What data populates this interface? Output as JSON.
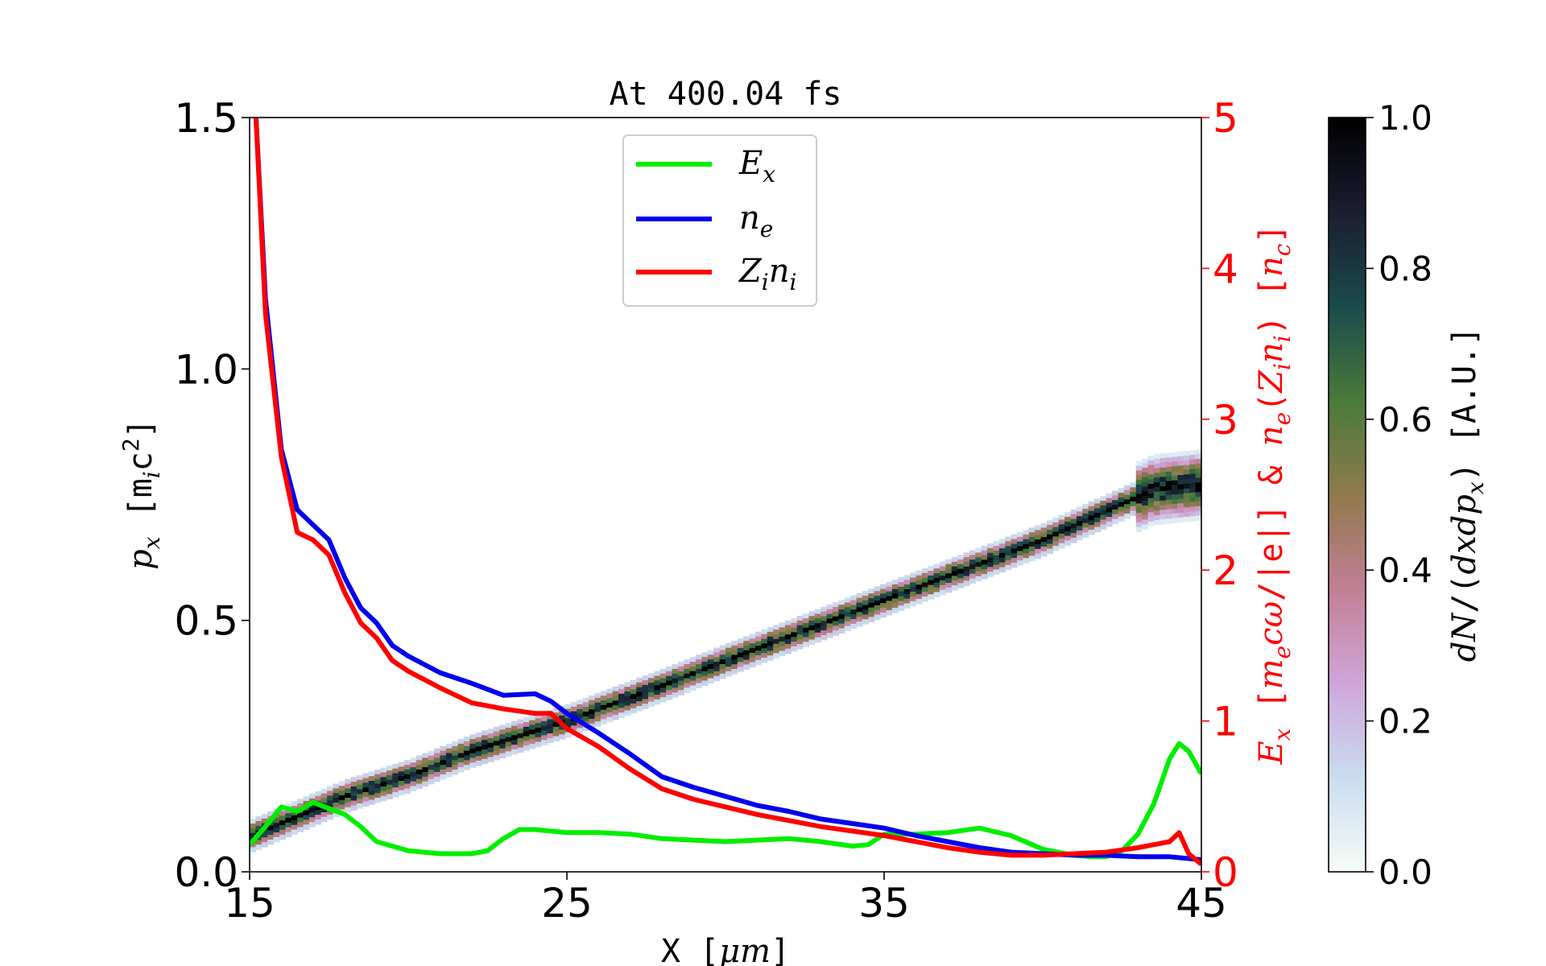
{
  "chart_data": {
    "type": "line",
    "title": "At 400.04 fs",
    "xlabel": "X [μm]",
    "ylabel_left": "px [mic2]",
    "ylabel_right": "Ex [mecω/|e|] & ne(Zini) [nc]",
    "colorbar_label": "dN/(dxdpx) [A.U.]",
    "xlim": [
      15,
      45
    ],
    "ylim_left": [
      0,
      1.5
    ],
    "ylim_right": [
      0,
      5
    ],
    "colorbar_lim": [
      0,
      1
    ],
    "x_ticks": [
      "15",
      "25",
      "35",
      "45"
    ],
    "y_ticks_left": [
      "0.0",
      "0.5",
      "1.0",
      "1.5"
    ],
    "y_ticks_right": [
      "0",
      "1",
      "2",
      "3",
      "4",
      "5"
    ],
    "colorbar_ticks": [
      "0.0",
      "0.2",
      "0.4",
      "0.6",
      "0.8",
      "1.0"
    ],
    "right_axis_color": "#ff0000",
    "colormap": [
      "#f7fcf7",
      "#c9dcef",
      "#cfa6d8",
      "#c27f94",
      "#8f7a4d",
      "#4a7a3a",
      "#1b4a4c",
      "#1a1d30",
      "#000000"
    ],
    "legend": {
      "placement": "top-center",
      "entries": [
        {
          "label": "Ex",
          "color": "#00ee00"
        },
        {
          "label": "ne",
          "color": "#0000ee"
        },
        {
          "label": "Zini",
          "color": "#ff0000"
        }
      ]
    },
    "series": [
      {
        "axis": "right",
        "color": "#00ee00",
        "x": [
          15,
          15.5,
          16,
          16.5,
          17,
          17.5,
          18,
          18.5,
          19,
          20,
          21,
          22,
          22.5,
          23,
          23.5,
          24,
          25,
          26,
          27,
          28,
          29,
          30,
          31,
          32,
          33,
          34,
          34.5,
          35,
          36,
          37,
          38,
          39,
          40,
          41,
          41.5,
          42,
          42.5,
          43,
          43.5,
          44,
          44.3,
          44.6,
          45
        ],
        "y": [
          0.18,
          0.3,
          0.43,
          0.4,
          0.46,
          0.42,
          0.38,
          0.3,
          0.2,
          0.14,
          0.12,
          0.12,
          0.14,
          0.22,
          0.28,
          0.28,
          0.26,
          0.26,
          0.25,
          0.22,
          0.21,
          0.2,
          0.21,
          0.22,
          0.2,
          0.17,
          0.18,
          0.25,
          0.25,
          0.26,
          0.29,
          0.24,
          0.15,
          0.11,
          0.1,
          0.1,
          0.14,
          0.25,
          0.45,
          0.75,
          0.85,
          0.8,
          0.65
        ]
      },
      {
        "axis": "right",
        "color": "#0000ee",
        "x": [
          15.2,
          15.5,
          16,
          16.5,
          17,
          17.5,
          18,
          18.5,
          19,
          19.5,
          20,
          21,
          22,
          23,
          24,
          24.5,
          25,
          26,
          27,
          28,
          29,
          30,
          31,
          32,
          33,
          34,
          35,
          36,
          37,
          38,
          39,
          40,
          41,
          42,
          43,
          44,
          45
        ],
        "y": [
          5.0,
          3.8,
          2.8,
          2.4,
          2.3,
          2.2,
          1.95,
          1.75,
          1.65,
          1.5,
          1.43,
          1.32,
          1.25,
          1.17,
          1.18,
          1.13,
          1.05,
          0.92,
          0.78,
          0.63,
          0.56,
          0.5,
          0.44,
          0.4,
          0.35,
          0.32,
          0.29,
          0.24,
          0.2,
          0.16,
          0.13,
          0.12,
          0.11,
          0.11,
          0.1,
          0.1,
          0.08
        ]
      },
      {
        "axis": "right",
        "color": "#ff0000",
        "x": [
          15.2,
          15.5,
          16,
          16.5,
          17,
          17.5,
          18,
          18.5,
          19,
          19.5,
          20,
          21,
          22,
          23,
          24,
          24.5,
          25,
          26,
          27,
          28,
          29,
          30,
          31,
          32,
          33,
          34,
          35,
          36,
          37,
          38,
          39,
          40,
          41,
          42,
          43,
          43.5,
          44,
          44.3,
          44.6,
          45
        ],
        "y": [
          5.0,
          3.7,
          2.75,
          2.25,
          2.2,
          2.1,
          1.85,
          1.65,
          1.55,
          1.4,
          1.33,
          1.22,
          1.12,
          1.08,
          1.05,
          1.05,
          0.95,
          0.83,
          0.68,
          0.55,
          0.48,
          0.43,
          0.38,
          0.34,
          0.3,
          0.27,
          0.24,
          0.2,
          0.16,
          0.13,
          0.11,
          0.11,
          0.12,
          0.13,
          0.16,
          0.18,
          0.2,
          0.26,
          0.12,
          0.05
        ]
      }
    ],
    "phase_space_ridge": {
      "x": [
        15,
        18,
        20,
        22,
        25,
        28,
        30,
        35,
        40,
        43.5,
        45
      ],
      "y": [
        0.07,
        0.15,
        0.19,
        0.24,
        0.3,
        0.37,
        0.42,
        0.54,
        0.66,
        0.76,
        0.77
      ]
    }
  }
}
